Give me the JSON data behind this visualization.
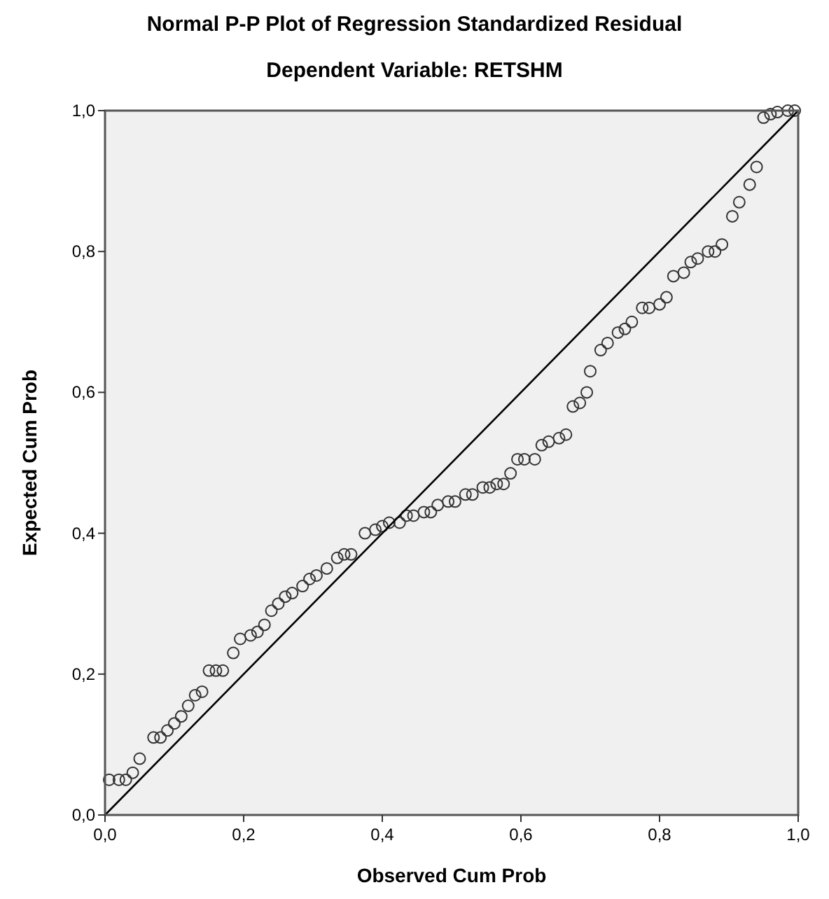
{
  "chart_data": {
    "type": "scatter",
    "title": "Normal P-P Plot of Regression Standardized Residual",
    "subtitle": "Dependent Variable: RETSHM",
    "xlabel": "Observed Cum Prob",
    "ylabel": "Expected Cum Prob",
    "xlim": [
      0,
      1
    ],
    "ylim": [
      0,
      1
    ],
    "xticks": [
      {
        "value": 0,
        "label": "0,0"
      },
      {
        "value": 0.2,
        "label": "0,2"
      },
      {
        "value": 0.4,
        "label": "0,4"
      },
      {
        "value": 0.6,
        "label": "0,6"
      },
      {
        "value": 0.8,
        "label": "0,8"
      },
      {
        "value": 1,
        "label": "1,0"
      }
    ],
    "yticks": [
      {
        "value": 0,
        "label": "0,0"
      },
      {
        "value": 0.2,
        "label": "0,2"
      },
      {
        "value": 0.4,
        "label": "0,4"
      },
      {
        "value": 0.6,
        "label": "0,6"
      },
      {
        "value": 0.8,
        "label": "0,8"
      },
      {
        "value": 1,
        "label": "1,0"
      }
    ],
    "grid": false,
    "series": [
      {
        "color": "#333333",
        "marker": "circle",
        "x": [
          0.006,
          0.02,
          0.03,
          0.04,
          0.05,
          0.07,
          0.08,
          0.09,
          0.1,
          0.11,
          0.12,
          0.13,
          0.14,
          0.15,
          0.16,
          0.17,
          0.185,
          0.195,
          0.21,
          0.22,
          0.23,
          0.24,
          0.25,
          0.26,
          0.27,
          0.285,
          0.295,
          0.305,
          0.32,
          0.335,
          0.345,
          0.355,
          0.375,
          0.39,
          0.4,
          0.41,
          0.425,
          0.435,
          0.445,
          0.46,
          0.47,
          0.48,
          0.495,
          0.505,
          0.52,
          0.53,
          0.545,
          0.555,
          0.565,
          0.575,
          0.585,
          0.595,
          0.605,
          0.62,
          0.63,
          0.64,
          0.655,
          0.665,
          0.675,
          0.685,
          0.695,
          0.7,
          0.715,
          0.725,
          0.74,
          0.75,
          0.76,
          0.775,
          0.785,
          0.8,
          0.81,
          0.82,
          0.835,
          0.845,
          0.855,
          0.87,
          0.88,
          0.89,
          0.905,
          0.915,
          0.93,
          0.94,
          0.95,
          0.96,
          0.97,
          0.985,
          0.995
        ],
        "values": [
          0.05,
          0.05,
          0.05,
          0.06,
          0.08,
          0.11,
          0.11,
          0.12,
          0.13,
          0.14,
          0.155,
          0.17,
          0.175,
          0.205,
          0.205,
          0.205,
          0.23,
          0.25,
          0.255,
          0.26,
          0.27,
          0.29,
          0.3,
          0.31,
          0.315,
          0.325,
          0.335,
          0.34,
          0.35,
          0.365,
          0.37,
          0.37,
          0.4,
          0.405,
          0.41,
          0.415,
          0.415,
          0.425,
          0.425,
          0.43,
          0.43,
          0.44,
          0.445,
          0.445,
          0.455,
          0.455,
          0.465,
          0.465,
          0.47,
          0.47,
          0.485,
          0.505,
          0.505,
          0.505,
          0.525,
          0.53,
          0.535,
          0.54,
          0.58,
          0.585,
          0.6,
          0.63,
          0.66,
          0.67,
          0.685,
          0.69,
          0.7,
          0.72,
          0.72,
          0.725,
          0.735,
          0.765,
          0.77,
          0.785,
          0.79,
          0.8,
          0.8,
          0.81,
          0.85,
          0.87,
          0.895,
          0.92,
          0.99,
          0.995,
          0.998,
          1.0,
          1.0
        ]
      },
      {
        "type": "line",
        "color": "#000000",
        "x": [
          0,
          1
        ],
        "values": [
          0,
          1
        ],
        "marker": "none",
        "line_style": "solid"
      }
    ]
  }
}
